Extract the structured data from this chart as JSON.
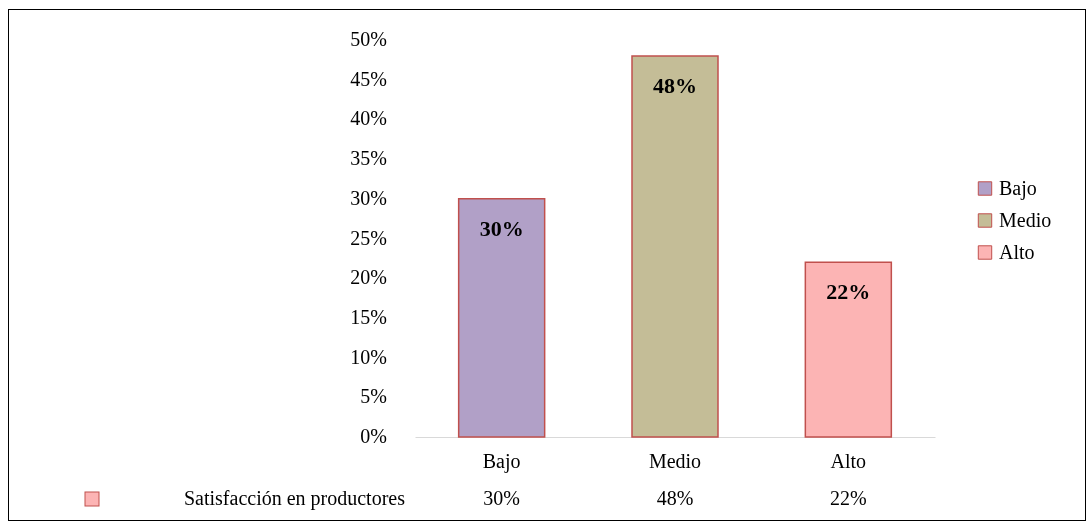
{
  "chart_data": {
    "type": "bar",
    "stacked": true,
    "categories": [
      "Bajo",
      "Medio",
      "Alto"
    ],
    "series": [
      {
        "name": "Bajo",
        "color": "#b1a0c7",
        "values": [
          30,
          null,
          null
        ],
        "value_labels": [
          "30%",
          null,
          null
        ]
      },
      {
        "name": "Medio",
        "color": "#c4bd97",
        "values": [
          null,
          48,
          null
        ],
        "value_labels": [
          null,
          "48%",
          null
        ]
      },
      {
        "name": "Alto",
        "color": "#fcb4b4",
        "values": [
          null,
          null,
          22
        ],
        "value_labels": [
          null,
          null,
          "22%"
        ]
      }
    ],
    "annotations": [
      "Satisfacción en productores"
    ],
    "ylim": [
      0,
      50
    ],
    "yticks": [
      {
        "value": 0,
        "label": "0%"
      },
      {
        "value": 5,
        "label": "5%"
      },
      {
        "value": 10,
        "label": "10%"
      },
      {
        "value": 15,
        "label": "15%"
      },
      {
        "value": 20,
        "label": "20%"
      },
      {
        "value": 25,
        "label": "25%"
      },
      {
        "value": 30,
        "label": "30%"
      },
      {
        "value": 35,
        "label": "35%"
      },
      {
        "value": 40,
        "label": "40%"
      },
      {
        "value": 45,
        "label": "45%"
      },
      {
        "value": 50,
        "label": "50%"
      }
    ],
    "grid": false,
    "legend": "right"
  }
}
